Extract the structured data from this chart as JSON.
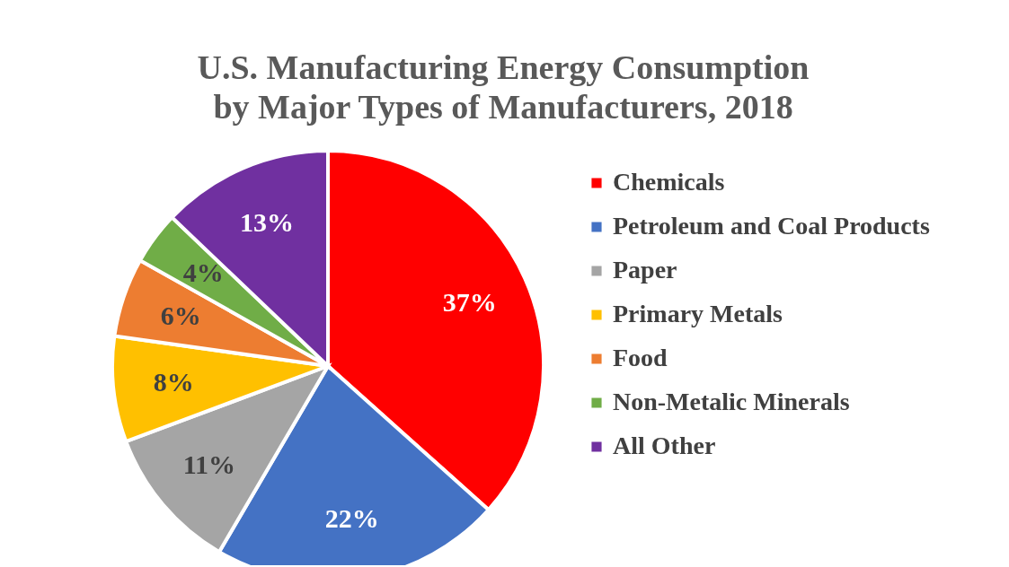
{
  "chart_data": {
    "type": "pie",
    "title": "U.S. Manufacturing Energy Consumption by Major Types of Manufacturers, 2018",
    "categories": [
      "Chemicals",
      "Petroleum and Coal Products",
      "Paper",
      "Primary Metals",
      "Food",
      "Non-Metalic Minerals",
      "All Other"
    ],
    "values": [
      37,
      22,
      11,
      8,
      6,
      4,
      13
    ],
    "value_labels": [
      "37%",
      "22%",
      "11%",
      "8%",
      "6%",
      "4%",
      "13%"
    ],
    "colors": [
      "#ff0000",
      "#4472c4",
      "#a5a5a5",
      "#ffc000",
      "#ed7d31",
      "#70ad47",
      "#7030a0"
    ],
    "legend": "right"
  }
}
